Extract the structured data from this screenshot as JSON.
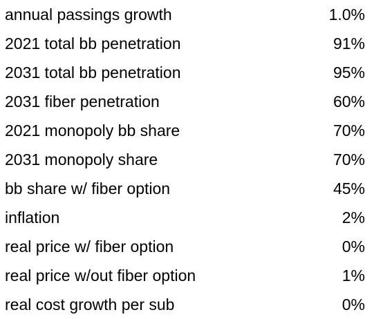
{
  "table": {
    "rows": [
      {
        "label": "annual passings growth",
        "value": "1.0%"
      },
      {
        "label": "2021 total bb penetration",
        "value": "91%"
      },
      {
        "label": "2031 total bb penetration",
        "value": "95%"
      },
      {
        "label": "2031 fiber penetration",
        "value": "60%"
      },
      {
        "label": "2021 monopoly bb share",
        "value": "70%"
      },
      {
        "label": "2031 monopoly share",
        "value": "70%"
      },
      {
        "label": "bb share w/ fiber option",
        "value": "45%"
      },
      {
        "label": "inflation",
        "value": "2%"
      },
      {
        "label": "real price w/ fiber option",
        "value": "0%"
      },
      {
        "label": "real price w/out fiber option",
        "value": "1%"
      },
      {
        "label": "real cost growth per sub",
        "value": "0%"
      }
    ]
  }
}
